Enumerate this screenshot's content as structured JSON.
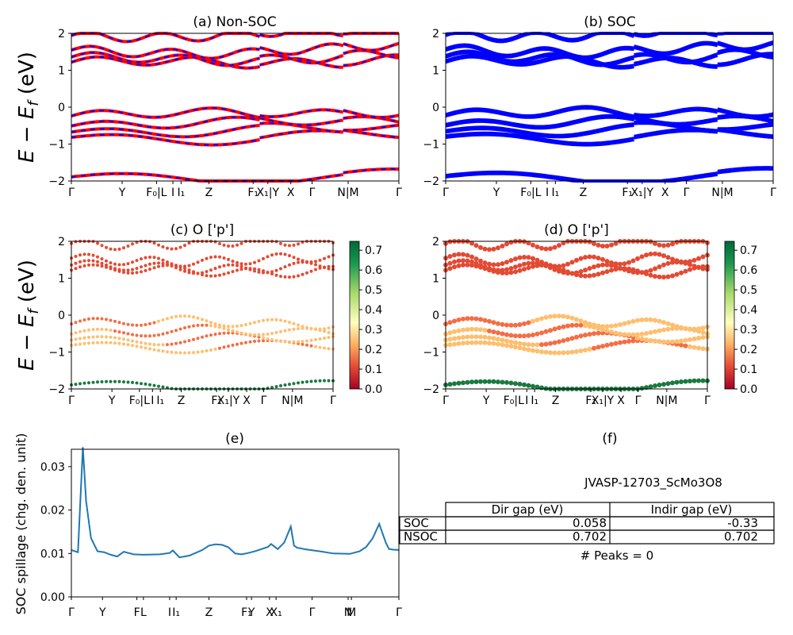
{
  "chart_data": [
    {
      "id": "a",
      "type": "line",
      "title": "(a) Non-SOC",
      "ylabel": "E - E_f (eV)",
      "ylim": [
        -2,
        2
      ],
      "yticks": [
        "2",
        "1",
        "0",
        "−1",
        "−2"
      ],
      "kpath": [
        "Γ",
        "Y",
        "F₀|L",
        "I",
        "I₁",
        "Z",
        "F₁",
        "X₁|Y",
        "X",
        "Γ",
        "N|M",
        "Γ"
      ],
      "series": [
        {
          "color": "#ff0000",
          "style": "solid"
        },
        {
          "color": "#0000ff",
          "style": "dashed"
        }
      ],
      "band_centers": [
        -1.95,
        -0.85,
        -0.65,
        -0.45,
        -0.2,
        1.2,
        1.3,
        1.5,
        1.95
      ]
    },
    {
      "id": "b",
      "type": "line",
      "title": "(b) SOC",
      "ylim": [
        -2,
        2
      ],
      "yticks": [
        "2",
        "1",
        "0",
        "−1",
        "−2"
      ],
      "kpath": [
        "Γ",
        "Y",
        "F₀|L",
        "I",
        "I₁",
        "Z",
        "F₁",
        "X₁|Y",
        "X",
        "Γ",
        "N|M",
        "Γ"
      ],
      "series": [
        {
          "color": "#0000ff",
          "style": "solid"
        }
      ]
    },
    {
      "id": "c",
      "type": "scatter",
      "title": "(c)  O ['p']",
      "ylabel": "E - E_f (eV)",
      "ylim": [
        -2,
        2
      ],
      "colorbar_ticks": [
        "0.7",
        "0.6",
        "0.5",
        "0.4",
        "0.3",
        "0.2",
        "0.1",
        "0.0"
      ],
      "colormap": "RdYlGn"
    },
    {
      "id": "d",
      "type": "scatter",
      "title": "(d) O ['p']",
      "ylim": [
        -2,
        2
      ],
      "colorbar_ticks": [
        "0.7",
        "0.6",
        "0.5",
        "0.4",
        "0.3",
        "0.2",
        "0.1",
        "0.0"
      ],
      "colormap": "RdYlGn"
    },
    {
      "id": "e",
      "type": "line",
      "title": "(e)",
      "ylabel": "SOC spillage (chg. den. unit)",
      "ylim": [
        0,
        0.034
      ],
      "yticks": [
        "0.03",
        "0.02",
        "0.01",
        "0.00"
      ],
      "xticks": [
        "Γ",
        "Y",
        "F",
        "L",
        "I",
        "I₁",
        "Z",
        "F₁",
        "Y",
        "X",
        "X₁",
        "Γ",
        "N",
        "M",
        "Γ"
      ],
      "x": [
        0.0,
        0.02,
        0.035,
        0.045,
        0.06,
        0.08,
        0.1,
        0.12,
        0.14,
        0.16,
        0.17,
        0.19,
        0.22,
        0.27,
        0.3,
        0.31,
        0.33,
        0.36,
        0.4,
        0.42,
        0.44,
        0.46,
        0.48,
        0.5,
        0.52,
        0.54,
        0.56,
        0.6,
        0.61,
        0.63,
        0.65,
        0.67,
        0.68,
        0.69,
        0.7,
        0.71,
        0.72,
        0.74,
        0.76,
        0.8,
        0.85,
        0.88,
        0.9,
        0.92,
        0.94,
        0.96,
        0.97,
        0.975,
        0.98,
        1.0
      ],
      "y": [
        0.0108,
        0.0103,
        0.0345,
        0.022,
        0.0135,
        0.0105,
        0.0103,
        0.0097,
        0.0093,
        0.0104,
        0.0102,
        0.0098,
        0.0097,
        0.0098,
        0.0101,
        0.0107,
        0.0091,
        0.0095,
        0.0108,
        0.0118,
        0.0121,
        0.012,
        0.0114,
        0.01,
        0.0098,
        0.0101,
        0.0105,
        0.0115,
        0.0122,
        0.011,
        0.0125,
        0.0162,
        0.0118,
        0.0113,
        0.0112,
        0.011,
        0.0109,
        0.0107,
        0.0105,
        0.01,
        0.0099,
        0.0105,
        0.0115,
        0.0135,
        0.0168,
        0.0125,
        0.011,
        0.011,
        0.0109,
        0.0108
      ],
      "color": "#1f77b4"
    }
  ],
  "panel_f": {
    "title": "(f)",
    "name": "JVASP-12703_ScMo3O8",
    "headers": [
      "Dir gap (eV)",
      "Indir gap (eV)"
    ],
    "rows": [
      {
        "label": "SOC",
        "dir": "0.058",
        "indir": "-0.33"
      },
      {
        "label": "NSOC",
        "dir": "0.702",
        "indir": "0.702"
      }
    ],
    "peaks": "# Peaks = 0"
  }
}
